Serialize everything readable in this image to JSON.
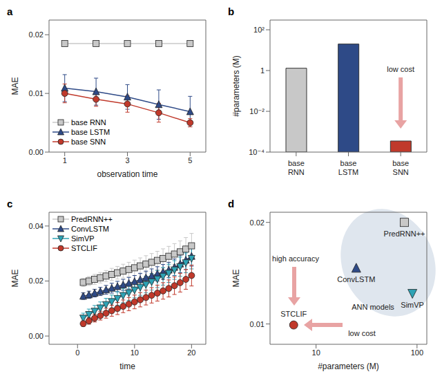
{
  "chart_data": [
    {
      "type": "line",
      "title": "a",
      "xlabel": "observation time",
      "ylabel": "MAE",
      "x": [
        1,
        2,
        3,
        4,
        5
      ],
      "xlim": [
        0.5,
        5.5
      ],
      "xticks": [
        1,
        3,
        5
      ],
      "ylim": [
        0,
        0.0225
      ],
      "yticks": [
        {
          "value": 0,
          "label": "0.00"
        },
        0.01,
        0.02
      ],
      "legend": "lower left",
      "series": [
        {
          "name": "base RNN",
          "color": "#c8c8c8",
          "marker": "square",
          "values": [
            0.0185,
            0.0185,
            0.0185,
            0.0185,
            0.0185
          ],
          "errors": [
            0.0003,
            0.0003,
            0.0003,
            0.0003,
            0.0003
          ]
        },
        {
          "name": "base LSTM",
          "color": "#2e4a87",
          "marker": "triangle",
          "values": [
            0.0109,
            0.0103,
            0.0094,
            0.0081,
            0.0069
          ],
          "errors": [
            0.0023,
            0.0023,
            0.0021,
            0.0025,
            0.0026
          ]
        },
        {
          "name": "base SNN",
          "color": "#c0392b",
          "marker": "circle",
          "values": [
            0.01,
            0.009,
            0.0082,
            0.0067,
            0.005
          ],
          "errors": [
            0.0016,
            0.0012,
            0.0014,
            0.0016,
            0.0007
          ]
        }
      ]
    },
    {
      "type": "bar",
      "title": "b",
      "ylabel": "#parameters (M)",
      "categories": [
        "base RNN",
        "base LSTM",
        "base SNN"
      ],
      "values": [
        1.3,
        20,
        0.00035
      ],
      "colors": [
        "#c8c8c8",
        "#2e4a87",
        "#c0392b"
      ],
      "log": "y",
      "ylim": [
        0.0001,
        300
      ],
      "yticks": [
        {
          "value": 100,
          "label": "10²"
        },
        1,
        {
          "value": 0.01,
          "label": "10⁻²"
        },
        {
          "value": 0.0001,
          "label": "10⁻⁴"
        }
      ],
      "annotations": [
        {
          "text": "low cost"
        }
      ]
    },
    {
      "type": "line",
      "title": "c",
      "xlabel": "time",
      "ylabel": "MAE",
      "x": [
        1,
        2,
        3,
        4,
        5,
        6,
        7,
        8,
        9,
        10,
        11,
        12,
        13,
        14,
        15,
        16,
        17,
        18,
        19,
        20
      ],
      "xlim": [
        -5,
        22.5
      ],
      "xticks": [
        0,
        10,
        20
      ],
      "ylim": [
        -0.003,
        0.045
      ],
      "yticks": [
        {
          "value": 0,
          "label": "0.00"
        },
        0.02,
        0.04
      ],
      "legend": "upper left",
      "series": [
        {
          "name": "PredRNN++",
          "color": "#c8c8c8",
          "marker": "square",
          "values": [
            0.0195,
            0.02,
            0.0206,
            0.0212,
            0.0218,
            0.0224,
            0.023,
            0.0236,
            0.0242,
            0.0248,
            0.0255,
            0.0262,
            0.0268,
            0.0275,
            0.0282,
            0.029,
            0.0298,
            0.0306,
            0.0316,
            0.0328
          ],
          "errors": [
            0.0015,
            0.0016,
            0.0018,
            0.0019,
            0.002,
            0.0022,
            0.0023,
            0.0025,
            0.0026,
            0.0028,
            0.0029,
            0.003,
            0.0032,
            0.0033,
            0.0035,
            0.0036,
            0.0038,
            0.004,
            0.0042,
            0.0045
          ]
        },
        {
          "name": "ConvLSTM",
          "color": "#2e4a87",
          "marker": "triangle",
          "values": [
            0.0145,
            0.015,
            0.0156,
            0.0162,
            0.0168,
            0.0174,
            0.018,
            0.0186,
            0.0192,
            0.0198,
            0.0205,
            0.0212,
            0.0219,
            0.0226,
            0.0233,
            0.024,
            0.025,
            0.0262,
            0.0276,
            0.029
          ],
          "errors": [
            0.0012,
            0.0013,
            0.0014,
            0.0015,
            0.0016,
            0.0018,
            0.0019,
            0.002,
            0.0021,
            0.0022,
            0.0023,
            0.0024,
            0.0025,
            0.0026,
            0.0027,
            0.0028,
            0.003,
            0.0032,
            0.0034,
            0.0036
          ]
        },
        {
          "name": "SimVP",
          "color": "#2fa3b5",
          "marker": "triangle_down",
          "values": [
            0.0065,
            0.0078,
            0.009,
            0.0102,
            0.0114,
            0.0125,
            0.0136,
            0.0147,
            0.0157,
            0.0167,
            0.0177,
            0.0187,
            0.0197,
            0.0207,
            0.0217,
            0.0228,
            0.024,
            0.0252,
            0.0266,
            0.0282
          ],
          "errors": [
            0.0018,
            0.002,
            0.0021,
            0.0022,
            0.0023,
            0.0024,
            0.0025,
            0.0026,
            0.0027,
            0.0028,
            0.0029,
            0.003,
            0.003,
            0.0031,
            0.0032,
            0.0033,
            0.0034,
            0.0035,
            0.0036,
            0.0038
          ]
        },
        {
          "name": "STCLIF",
          "color": "#c0392b",
          "marker": "circle",
          "values": [
            0.0045,
            0.0055,
            0.0065,
            0.0074,
            0.0083,
            0.0092,
            0.01,
            0.0108,
            0.0116,
            0.0124,
            0.0132,
            0.014,
            0.0148,
            0.0156,
            0.0164,
            0.0173,
            0.0183,
            0.0194,
            0.0206,
            0.022
          ],
          "errors": [
            0.001,
            0.0012,
            0.0014,
            0.0016,
            0.0018,
            0.002,
            0.0022,
            0.0023,
            0.0024,
            0.0025,
            0.0026,
            0.0027,
            0.0028,
            0.0029,
            0.003,
            0.0031,
            0.0032,
            0.0034,
            0.0036,
            0.0038
          ]
        }
      ]
    },
    {
      "type": "scatter",
      "title": "d",
      "xlabel": "#parameters (M)",
      "ylabel": "MAE",
      "log": "x",
      "xlim": [
        3.5,
        125
      ],
      "xticks": [
        10,
        100
      ],
      "ylim": [
        0.008,
        0.021
      ],
      "yticks": [
        0.01,
        0.02
      ],
      "series": [
        {
          "name": "PredRNN++",
          "color": "#c8c8c8",
          "marker": "square",
          "x": [
            75
          ],
          "values": [
            0.02
          ]
        },
        {
          "name": "ConvLSTM",
          "color": "#2e4a87",
          "marker": "triangle",
          "x": [
            25
          ],
          "values": [
            0.0155
          ]
        },
        {
          "name": "SimVP",
          "color": "#2fa3b5",
          "marker": "triangle_down",
          "x": [
            90
          ],
          "values": [
            0.013
          ]
        },
        {
          "name": "STCLIF",
          "color": "#c0392b",
          "marker": "circle",
          "x": [
            6
          ],
          "values": [
            0.0099
          ]
        }
      ],
      "annotations": [
        {
          "text": "ANN models"
        },
        {
          "text": "high accuracy"
        },
        {
          "text": "low cost"
        }
      ]
    }
  ]
}
